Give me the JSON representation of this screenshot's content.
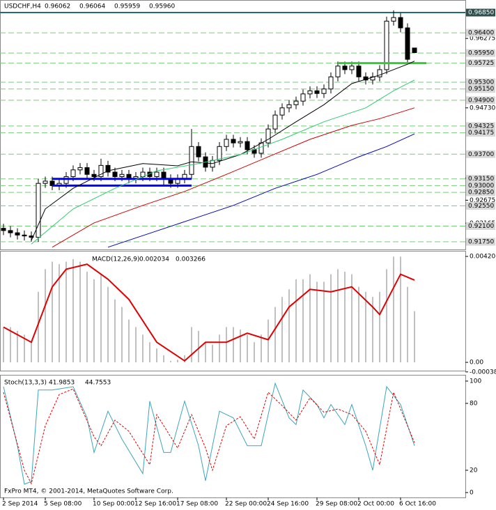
{
  "chart_data": [
    {
      "type": "candlestick",
      "title": "USDCHF,H4",
      "last_labels": [
        "0.96062",
        "0.96064",
        "0.95959",
        "0.95960"
      ],
      "xlim": [
        -0.5,
        66.3
      ],
      "ylim": [
        0.9158,
        0.9713
      ],
      "open": [
        0.9205,
        0.92,
        0.9195,
        0.919,
        0.9188,
        0.9185,
        0.9305,
        0.931,
        0.93,
        0.9305,
        0.932,
        0.9335,
        0.934,
        0.9325,
        0.932,
        0.9345,
        0.933,
        0.932,
        0.9325,
        0.9315,
        0.932,
        0.933,
        0.932,
        0.933,
        0.9315,
        0.9305,
        0.9315,
        0.9325,
        0.9387,
        0.9364,
        0.9341,
        0.9356,
        0.9387,
        0.9403,
        0.9395,
        0.9398,
        0.938,
        0.9372,
        0.9395,
        0.9426,
        0.9457,
        0.9473,
        0.948,
        0.9488,
        0.9504,
        0.9511,
        0.9505,
        0.9515,
        0.9542,
        0.9566,
        0.9558,
        0.9566,
        0.9542,
        0.9535,
        0.9542,
        0.9558,
        0.9666,
        0.9674,
        0.9651,
        0.96062
      ],
      "high": [
        0.9215,
        0.921,
        0.9205,
        0.92,
        0.9198,
        0.9315,
        0.932,
        0.932,
        0.9315,
        0.933,
        0.9345,
        0.935,
        0.935,
        0.9335,
        0.936,
        0.9355,
        0.934,
        0.9335,
        0.9335,
        0.933,
        0.934,
        0.934,
        0.934,
        0.934,
        0.9325,
        0.9325,
        0.9335,
        0.9426,
        0.9397,
        0.9374,
        0.9366,
        0.9397,
        0.9413,
        0.9413,
        0.9408,
        0.9408,
        0.939,
        0.9405,
        0.9436,
        0.9467,
        0.9483,
        0.949,
        0.9498,
        0.9514,
        0.9521,
        0.9521,
        0.9525,
        0.9552,
        0.9576,
        0.9576,
        0.9576,
        0.9576,
        0.9552,
        0.9552,
        0.9568,
        0.9676,
        0.969,
        0.9684,
        0.9661,
        0.96064
      ],
      "low": [
        0.919,
        0.9185,
        0.918,
        0.9178,
        0.9175,
        0.9175,
        0.9295,
        0.929,
        0.929,
        0.9295,
        0.931,
        0.9325,
        0.9315,
        0.931,
        0.931,
        0.932,
        0.931,
        0.931,
        0.9305,
        0.9305,
        0.931,
        0.931,
        0.931,
        0.93,
        0.9295,
        0.9295,
        0.9305,
        0.9315,
        0.9354,
        0.9331,
        0.9331,
        0.9346,
        0.9377,
        0.9385,
        0.9385,
        0.937,
        0.9362,
        0.9362,
        0.9385,
        0.9416,
        0.9447,
        0.9463,
        0.947,
        0.9478,
        0.9494,
        0.9495,
        0.9495,
        0.9505,
        0.9532,
        0.9548,
        0.9548,
        0.9532,
        0.9525,
        0.9525,
        0.9532,
        0.9548,
        0.9656,
        0.9641,
        0.9571,
        0.95959
      ],
      "close": [
        0.92,
        0.9195,
        0.919,
        0.9188,
        0.9185,
        0.9305,
        0.931,
        0.93,
        0.9305,
        0.932,
        0.9335,
        0.934,
        0.9325,
        0.932,
        0.9345,
        0.933,
        0.932,
        0.9325,
        0.9315,
        0.932,
        0.933,
        0.932,
        0.933,
        0.9315,
        0.9305,
        0.9315,
        0.9325,
        0.9387,
        0.9364,
        0.9341,
        0.9356,
        0.9387,
        0.9403,
        0.9395,
        0.9398,
        0.938,
        0.9372,
        0.9395,
        0.9426,
        0.9457,
        0.9473,
        0.948,
        0.9488,
        0.9504,
        0.9511,
        0.9505,
        0.9515,
        0.9542,
        0.9566,
        0.9558,
        0.9566,
        0.9542,
        0.9535,
        0.9542,
        0.9558,
        0.9666,
        0.9674,
        0.9651,
        0.9581,
        0.9596
      ],
      "series": [
        {
          "color": "#000000",
          "x": [
            4,
            6,
            10,
            15,
            20,
            25,
            27,
            30,
            34,
            38,
            42,
            46,
            50,
            54,
            58,
            59
          ],
          "values": [
            0.9178,
            0.9248,
            0.9294,
            0.9333,
            0.9349,
            0.9344,
            0.9353,
            0.9349,
            0.9369,
            0.9403,
            0.9442,
            0.948,
            0.9527,
            0.9546,
            0.957,
            0.9577
          ]
        },
        {
          "color": "#2ecc71",
          "x": [
            4,
            10,
            16,
            22,
            28,
            34,
            40,
            46,
            52,
            56,
            59
          ],
          "values": [
            0.917,
            0.9248,
            0.9294,
            0.9333,
            0.9349,
            0.9369,
            0.9403,
            0.9442,
            0.9473,
            0.9511,
            0.9535
          ]
        },
        {
          "color": "#d00000",
          "x": [
            7,
            13,
            20,
            26,
            32,
            38,
            44,
            50,
            54,
            59
          ],
          "values": [
            0.9163,
            0.9217,
            0.9256,
            0.9287,
            0.9325,
            0.9364,
            0.9403,
            0.9434,
            0.9449,
            0.9473
          ]
        },
        {
          "color": "#0000c0",
          "x": [
            15,
            21,
            27,
            33,
            39,
            45,
            51,
            55,
            59
          ],
          "values": [
            0.9163,
            0.9194,
            0.9225,
            0.9256,
            0.9294,
            0.9325,
            0.9364,
            0.9387,
            0.9415
          ]
        }
      ],
      "segments": [
        {
          "color": "#0000ff",
          "value": 0.9315,
          "x": [
            7,
            27
          ]
        },
        {
          "color": "#0000ff",
          "value": 0.93,
          "x": [
            7,
            27
          ]
        },
        {
          "color": "#33cc33",
          "value": 0.95725,
          "x": [
            48,
            60.7
          ]
        }
      ],
      "levels": [
        {
          "value": 0.9685,
          "label": "0.96850"
        },
        {
          "value": 0.964,
          "label": "0.96400"
        },
        {
          "value": 0.9595,
          "label": "0.95950"
        },
        {
          "value": 0.95725,
          "label": "0.95725"
        },
        {
          "value": 0.953,
          "label": "0.95300"
        },
        {
          "value": 0.9515,
          "label": "0.95150"
        },
        {
          "value": 0.949,
          "label": "0.94900"
        },
        {
          "value": 0.94325,
          "label": "0.94325"
        },
        {
          "value": 0.94175,
          "label": "0.94175"
        },
        {
          "value": 0.937,
          "label": "0.93700"
        },
        {
          "value": 0.9315,
          "label": "0.93150"
        },
        {
          "value": 0.93,
          "label": "0.93000"
        },
        {
          "value": 0.9285,
          "label": "0.92850"
        },
        {
          "value": 0.9255,
          "label": "0.92550"
        },
        {
          "value": 0.921,
          "label": "0.92100"
        },
        {
          "value": 0.9175,
          "label": "0.91750"
        }
      ],
      "yticks": [
        0.96275,
        {
          "value": 0.9473,
          "label": "0.94730"
        },
        0.93165,
        0.92675,
        0.92165
      ]
    },
    {
      "type": "macd",
      "title": "MACD(12,26,9)",
      "last_labels": [
        "0.002034",
        "0.003266"
      ],
      "xlim": [
        -0.5,
        66.3
      ],
      "ylim": [
        -0.00033,
        0.00443
      ],
      "values": [
        0.00138,
        0.0014,
        0.00125,
        0.0011,
        0.0008,
        0.0028,
        0.0037,
        0.004,
        0.0039,
        0.004,
        0.0041,
        0.004,
        0.0036,
        0.0033,
        0.0035,
        0.003,
        0.0025,
        0.0022,
        0.0017,
        0.0014,
        0.0011,
        0.0008,
        0.00055,
        0.00028,
        6e-05,
        0.0001,
        0.00028,
        0.0014,
        0.00125,
        0.0008,
        0.0007,
        0.0011,
        0.0014,
        0.0014,
        0.0013,
        0.0011,
        0.0008,
        0.0011,
        0.0017,
        0.0022,
        0.0026,
        0.0029,
        0.0033,
        0.0033,
        0.0035,
        0.0032,
        0.0032,
        0.0035,
        0.0037,
        0.0036,
        0.0035,
        0.003,
        0.0028,
        0.0026,
        0.0028,
        0.0037,
        0.0042,
        0.0042,
        0.003,
        0.002034
      ],
      "color": "#c0c0c0",
      "series": [
        {
          "color": "#e00000",
          "x": [
            0,
            4,
            7,
            9,
            12,
            15,
            18,
            22,
            26,
            29,
            32,
            35,
            38,
            41,
            44,
            47,
            50,
            53,
            54,
            57,
            59
          ],
          "values": [
            0.0014,
            0.0008,
            0.003,
            0.0037,
            0.0039,
            0.0033,
            0.0025,
            0.0008,
            6e-05,
            0.0008,
            0.0008,
            0.00116,
            0.0009,
            0.0022,
            0.0029,
            0.0028,
            0.003,
            0.0022,
            0.0019,
            0.0035,
            0.003266
          ]
        }
      ],
      "yticks": [
        0.004208,
        {
          "value": 0,
          "label": "0.00"
        },
        -0.00038
      ]
    },
    {
      "type": "line",
      "title": "Stoch(13,3,3)",
      "last_labels": [
        "41.9853",
        "44.7553"
      ],
      "xlim": [
        -0.5,
        66.3
      ],
      "ylim": [
        -4.4,
        105.6
      ],
      "series": [
        {
          "color": "#3aa6b9",
          "x": [
            0,
            2,
            3,
            4,
            5,
            7,
            10,
            12,
            13,
            15,
            17,
            20,
            21,
            23,
            24,
            26,
            28,
            29,
            31,
            33,
            35,
            37,
            39,
            41,
            42,
            43,
            45,
            46,
            47,
            48,
            49,
            50,
            52,
            53,
            55,
            57,
            59
          ],
          "values": [
            95,
            42,
            7.5,
            10,
            92,
            92,
            95,
            67,
            36,
            73,
            48,
            17,
            82,
            36,
            36,
            82,
            42,
            10.6,
            73,
            67,
            42,
            42,
            98,
            67,
            61,
            92,
            79,
            67,
            79,
            70,
            61,
            79,
            42,
            20,
            95,
            79,
            41.9853
          ]
        },
        {
          "color": "#e00000",
          "dashed": true,
          "x": [
            0,
            3,
            4,
            6,
            8,
            10,
            13,
            14,
            16,
            18,
            21,
            22,
            24,
            25,
            27,
            29,
            30,
            32,
            34,
            36,
            38,
            40,
            42,
            44,
            46,
            48,
            50,
            52,
            54,
            56,
            58,
            59
          ],
          "values": [
            90,
            20,
            8,
            60,
            88,
            93,
            50,
            42,
            65,
            55,
            25,
            70,
            50,
            40,
            70,
            40,
            20,
            60,
            68,
            48,
            90,
            78,
            65,
            85,
            72,
            75,
            70,
            55,
            25,
            90,
            60,
            44.7553
          ]
        }
      ],
      "yticks": [
        100,
        80,
        20,
        0
      ],
      "xticks": [
        {
          "value": 0,
          "label": "2 Sep 2014"
        },
        {
          "value": 6,
          "label": "5 Sep 08:00"
        },
        {
          "value": 13,
          "label": "10 Sep 00:00"
        },
        {
          "value": 19,
          "label": "12 Sep 16:00"
        },
        {
          "value": 25,
          "label": "17 Sep 08:00"
        },
        {
          "value": 32,
          "label": "22 Sep 00:00"
        },
        {
          "value": 38,
          "label": "24 Sep 16:00"
        },
        {
          "value": 45,
          "label": "29 Sep 08:00"
        },
        {
          "value": 51,
          "label": "2 Oct 00:00"
        },
        {
          "value": 57,
          "label": "6 Oct 16:00"
        }
      ],
      "footer": "FxPro MT4, © 2001-2014, MetaQuotes Software Corp."
    }
  ]
}
